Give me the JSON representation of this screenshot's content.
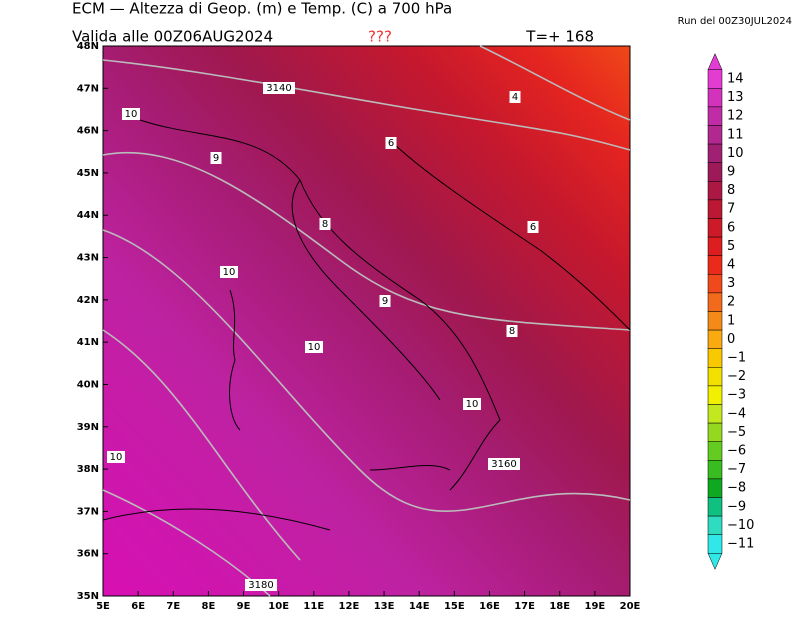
{
  "header": {
    "title": "ECM — Altezza di Geop. (m) e Temp. (C) a 700 hPa",
    "run": "Run del 00Z30JUL2024",
    "valid": "Valida alle 00Z06AUG2024",
    "flag": "???",
    "step": "T=+ 168"
  },
  "map": {
    "lat_labels": [
      "48N",
      "47N",
      "46N",
      "45N",
      "44N",
      "43N",
      "42N",
      "41N",
      "40N",
      "39N",
      "38N",
      "37N",
      "36N",
      "35N"
    ],
    "lon_labels": [
      "5E",
      "6E",
      "7E",
      "8E",
      "9E",
      "10E",
      "11E",
      "12E",
      "13E",
      "14E",
      "15E",
      "16E",
      "17E",
      "18E",
      "19E",
      "20E"
    ],
    "contour_labels": [
      "3140",
      "4",
      "10",
      "6",
      "9",
      "6",
      "8",
      "10",
      "9",
      "8",
      "10",
      "10",
      "10",
      "3160",
      "3180"
    ]
  },
  "colorbar": {
    "levels": [
      {
        "label": "14",
        "color": "#e43cd2"
      },
      {
        "label": "13",
        "color": "#d232bc"
      },
      {
        "label": "12",
        "color": "#c02ca6"
      },
      {
        "label": "11",
        "color": "#b02890"
      },
      {
        "label": "10",
        "color": "#a02074"
      },
      {
        "label": "9",
        "color": "#9c1a58"
      },
      {
        "label": "8",
        "color": "#ac1844"
      },
      {
        "label": "7",
        "color": "#bc1834"
      },
      {
        "label": "6",
        "color": "#cc1a28"
      },
      {
        "label": "5",
        "color": "#dc1e20"
      },
      {
        "label": "4",
        "color": "#ec2a1c"
      },
      {
        "label": "3",
        "color": "#f04a1c"
      },
      {
        "label": "2",
        "color": "#f26a1c"
      },
      {
        "label": "1",
        "color": "#f48a18"
      },
      {
        "label": "0",
        "color": "#f8aa10"
      },
      {
        "label": "−1",
        "color": "#f8c800"
      },
      {
        "label": "−2",
        "color": "#f4e000"
      },
      {
        "label": "−3",
        "color": "#f0f000"
      },
      {
        "label": "−4",
        "color": "#c4e820"
      },
      {
        "label": "−5",
        "color": "#94d820"
      },
      {
        "label": "−6",
        "color": "#64cc20"
      },
      {
        "label": "−7",
        "color": "#38bc20"
      },
      {
        "label": "−8",
        "color": "#10a820"
      },
      {
        "label": "−9",
        "color": "#10c080"
      },
      {
        "label": "−10",
        "color": "#30dcc0"
      },
      {
        "label": "−11",
        "color": "#30e8e8"
      }
    ]
  }
}
